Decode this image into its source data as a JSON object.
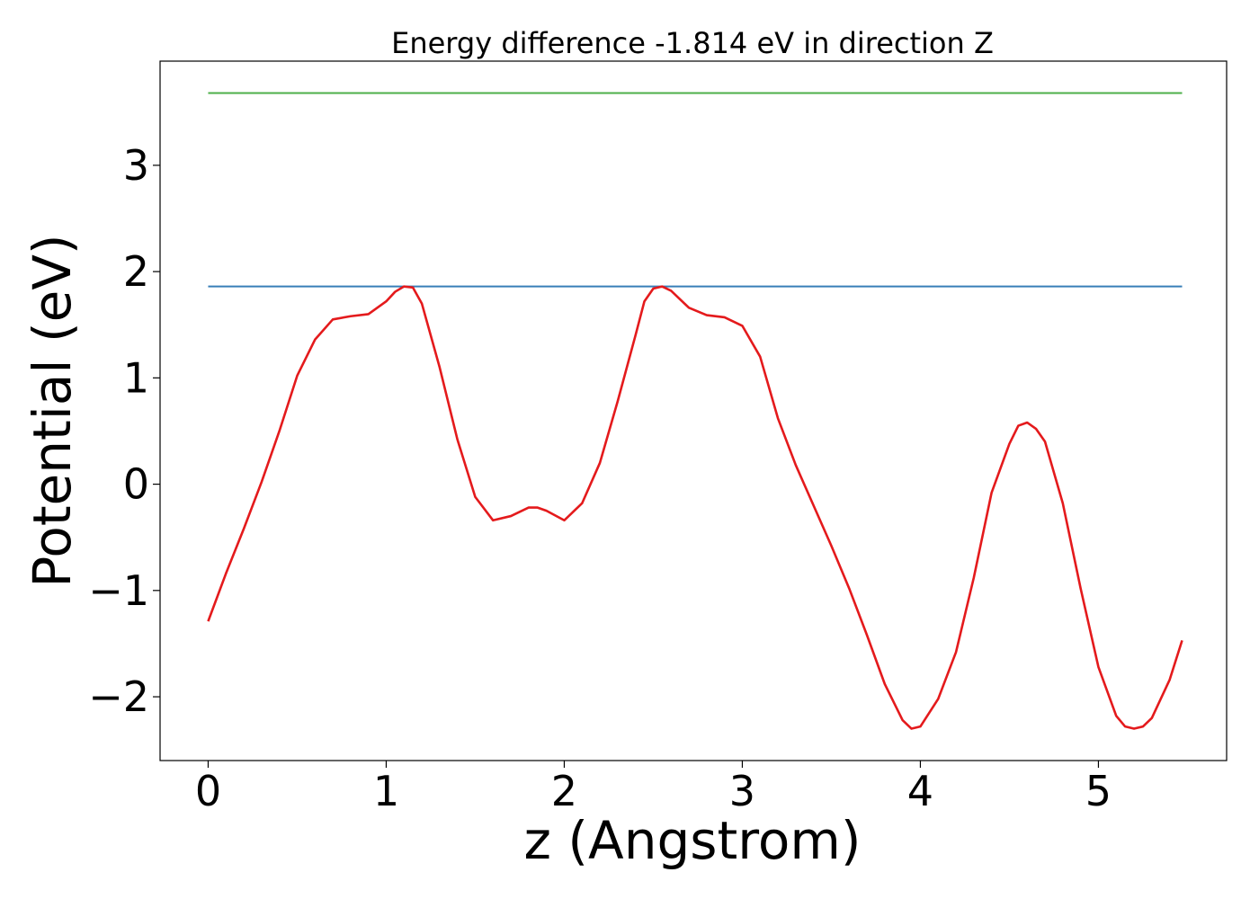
{
  "chart_data": {
    "type": "line",
    "title": "Energy difference -1.814 eV in direction Z",
    "xlabel": "z (Angstrom)",
    "ylabel": "Potential (eV)",
    "xlim": [
      -0.27,
      5.72
    ],
    "ylim": [
      -2.6,
      3.98
    ],
    "xticks": [
      0,
      1,
      2,
      3,
      4,
      5
    ],
    "xtick_labels": [
      "0",
      "1",
      "2",
      "3",
      "4",
      "5"
    ],
    "yticks": [
      -2,
      -1,
      0,
      1,
      2,
      3
    ],
    "ytick_labels": [
      "−2",
      "−1",
      "0",
      "1",
      "2",
      "3"
    ],
    "grid": false,
    "legend": "none",
    "series": [
      {
        "color": "#e41a1c",
        "x": [
          0,
          0.1,
          0.2,
          0.3,
          0.4,
          0.5,
          0.6,
          0.7,
          0.8,
          0.9,
          1.0,
          1.05,
          1.1,
          1.15,
          1.2,
          1.3,
          1.4,
          1.5,
          1.6,
          1.7,
          1.8,
          1.85,
          1.9,
          2.0,
          2.1,
          2.2,
          2.3,
          2.4,
          2.45,
          2.5,
          2.55,
          2.6,
          2.7,
          2.8,
          2.9,
          3.0,
          3.1,
          3.2,
          3.3,
          3.4,
          3.5,
          3.6,
          3.7,
          3.8,
          3.9,
          3.95,
          4.0,
          4.1,
          4.2,
          4.3,
          4.4,
          4.5,
          4.55,
          4.6,
          4.65,
          4.7,
          4.8,
          4.9,
          5.0,
          5.1,
          5.15,
          5.2,
          5.25,
          5.3,
          5.4,
          5.47
        ],
        "y": [
          -1.29,
          -0.84,
          -0.42,
          0.02,
          0.5,
          1.02,
          1.36,
          1.55,
          1.58,
          1.6,
          1.72,
          1.81,
          1.86,
          1.85,
          1.7,
          1.1,
          0.42,
          -0.12,
          -0.34,
          -0.3,
          -0.22,
          -0.22,
          -0.25,
          -0.34,
          -0.18,
          0.2,
          0.78,
          1.4,
          1.72,
          1.84,
          1.86,
          1.82,
          1.66,
          1.59,
          1.57,
          1.49,
          1.2,
          0.62,
          0.18,
          -0.2,
          -0.58,
          -0.98,
          -1.42,
          -1.88,
          -2.22,
          -2.3,
          -2.28,
          -2.02,
          -1.58,
          -0.88,
          -0.08,
          0.38,
          0.55,
          0.58,
          0.52,
          0.4,
          -0.18,
          -0.98,
          -1.72,
          -2.18,
          -2.28,
          -2.3,
          -2.28,
          -2.2,
          -1.84,
          -1.47
        ]
      },
      {
        "color": "#377eb8",
        "x": [
          0,
          5.47
        ],
        "y": [
          1.86,
          1.86
        ]
      },
      {
        "color": "#4daf4a",
        "x": [
          0,
          5.47
        ],
        "y": [
          3.68,
          3.68
        ]
      }
    ]
  }
}
